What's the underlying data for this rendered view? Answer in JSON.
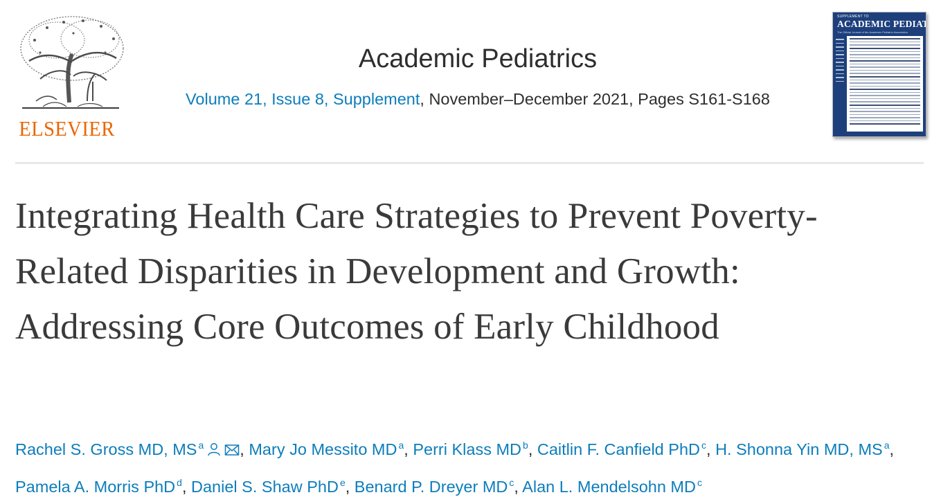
{
  "publisher": {
    "name": "ELSEVIER",
    "logo_icon": "elsevier-tree-logo",
    "color": "#eb6500"
  },
  "journal": {
    "title": "Academic Pediatrics"
  },
  "citation": {
    "issue_link": "Volume 21, Issue 8, Supplement",
    "rest": ", November–December 2021, Pages S161-S168"
  },
  "cover": {
    "top_text": "SUPPLEMENT TO",
    "title": "ACADEMIC PEDIATRICS",
    "subtitle": "The Official Journal of the Academic Pediatric Association"
  },
  "article": {
    "title": "Integrating Health Care Strategies to Prevent Poverty-Related Disparities in Development and Growth: Addressing Core Outcomes of Early Childhood"
  },
  "authors": [
    {
      "name": "Rachel S. Gross MD, MS",
      "sup": "a",
      "icons": [
        "person-icon",
        "envelope-icon"
      ]
    },
    {
      "name": "Mary Jo Messito MD",
      "sup": "a"
    },
    {
      "name": "Perri Klass MD",
      "sup": "b"
    },
    {
      "name": "Caitlin F. Canfield PhD",
      "sup": "c"
    },
    {
      "name": "H. Shonna Yin MD, MS",
      "sup": "a"
    },
    {
      "name": "Pamela A. Morris PhD",
      "sup": "d"
    },
    {
      "name": "Daniel S. Shaw PhD",
      "sup": "e"
    },
    {
      "name": "Benard P. Dreyer MD",
      "sup": "c"
    },
    {
      "name": "Alan L. Mendelsohn MD",
      "sup": "c"
    }
  ],
  "colors": {
    "link": "#0c7dbb",
    "text": "#2e2e2e",
    "title": "#3a3a3a",
    "cover": "#1d3f7c"
  }
}
